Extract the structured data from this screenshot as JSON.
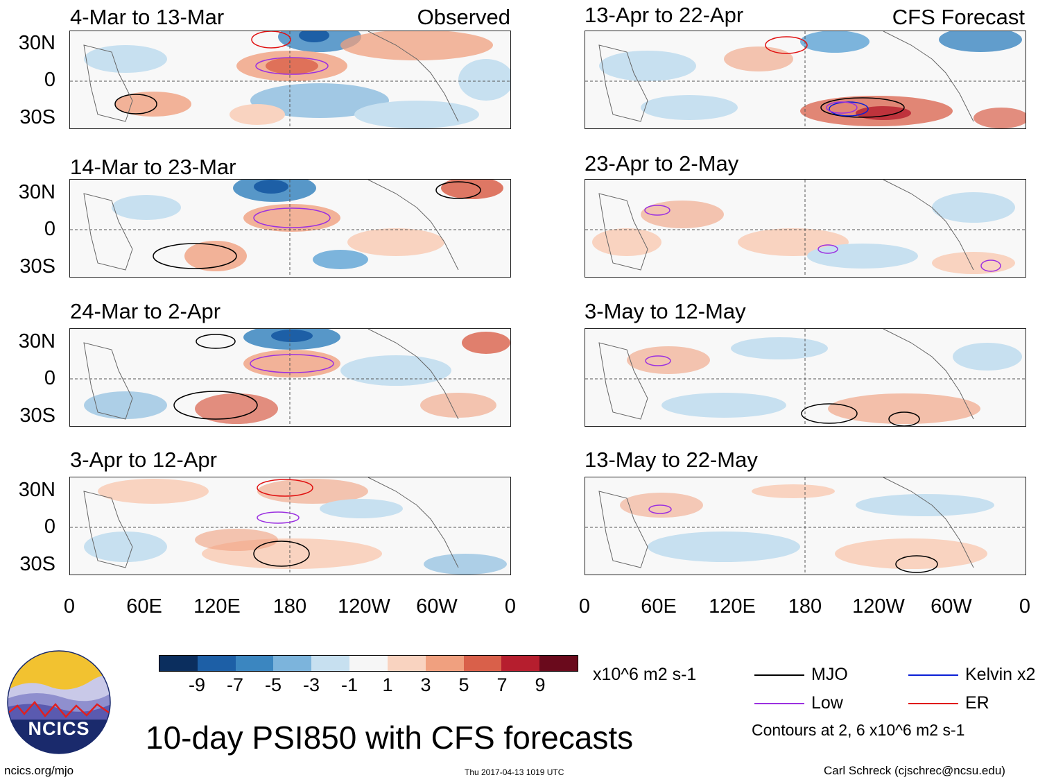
{
  "observed_label": "Observed",
  "forecast_label": "CFS Forecast",
  "panels": [
    {
      "title": "4-Mar to 13-Mar"
    },
    {
      "title": "14-Mar to 23-Mar"
    },
    {
      "title": "24-Mar to 2-Apr"
    },
    {
      "title": "3-Apr to 12-Apr"
    },
    {
      "title": "13-Apr to 22-Apr"
    },
    {
      "title": "23-Apr to 2-May"
    },
    {
      "title": "3-May to 12-May"
    },
    {
      "title": "13-May to 22-May"
    }
  ],
  "lat_labels": [
    "30N",
    "0",
    "30S"
  ],
  "lon_labels": [
    "0",
    "60E",
    "120E",
    "180",
    "120W",
    "60W",
    "0"
  ],
  "colorbar": {
    "labels": [
      "-9",
      "-7",
      "-5",
      "-3",
      "-1",
      "1",
      "3",
      "5",
      "7",
      "9"
    ],
    "colors": [
      "#0b2e5e",
      "#1d5fa6",
      "#3b86c0",
      "#7cb4dc",
      "#c7e0f0",
      "#f6f6f6",
      "#f9d3c0",
      "#f0a07f",
      "#d9604a",
      "#b61e2e",
      "#6a0a1c"
    ],
    "units": "x10^6 m2 s-1"
  },
  "legend": {
    "items": [
      {
        "label": "MJO",
        "color": "#000000"
      },
      {
        "label": "Kelvin x2",
        "color": "#0a1fd6"
      },
      {
        "label": "Low",
        "color": "#9b30e0"
      },
      {
        "label": "ER",
        "color": "#e01010"
      }
    ],
    "contours_note": "Contours at 2, 6 x10^6 m2 s-1"
  },
  "logo_text": "NCICS",
  "main_title": "10-day PSI850 with CFS forecasts",
  "footer": {
    "left": "ncics.org/mjo",
    "center": "Thu 2017-04-13 1019 UTC",
    "right": "Carl Schreck (cjschrec@ncsu.edu)"
  }
}
